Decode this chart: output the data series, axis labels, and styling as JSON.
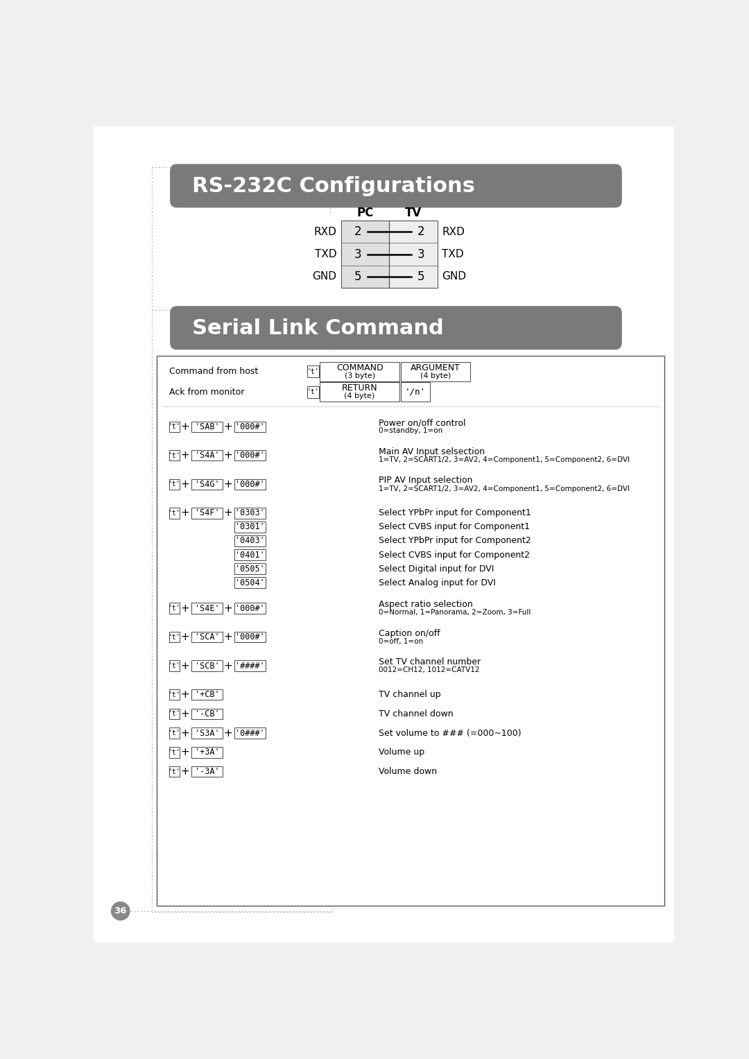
{
  "bg_color": "#f0f0f0",
  "page_bg": "#ffffff",
  "header1_text": "RS-232C Configurations",
  "header2_text": "Serial Link Command",
  "header_bg": "#7a7a7a",
  "header_text_color": "#ffffff",
  "pin_table": {
    "pc_label": "PC",
    "tv_label": "TV",
    "rows": [
      {
        "left_label": "RXD",
        "pc_pin": "2",
        "tv_pin": "2",
        "right_label": "RXD"
      },
      {
        "left_label": "TXD",
        "pc_pin": "3",
        "tv_pin": "3",
        "right_label": "TXD"
      },
      {
        "left_label": "GND",
        "pc_pin": "5",
        "tv_pin": "5",
        "right_label": "GND"
      }
    ]
  },
  "command_rows": [
    {
      "cmd": "'SAB'",
      "arg": "'000#'",
      "desc_line1": "Power on/off control",
      "desc_line2": "0=standby, 1=on"
    },
    {
      "cmd": "'S4A'",
      "arg": "'000#'",
      "desc_line1": "Main AV Input selsection",
      "desc_line2": "1=TV, 2=SCART1/2, 3=AV2, 4=Component1, 5=Component2, 6=DVI"
    },
    {
      "cmd": "'S4G'",
      "arg": "'000#'",
      "desc_line1": "PIP AV Input selection",
      "desc_line2": "1=TV, 2=SCART1/2, 3=AV2, 4=Component1, 5=Component2, 6=DVI"
    },
    {
      "cmd": "'S4F'",
      "arg": null,
      "desc_line1": null,
      "desc_line2": null,
      "sub_rows": [
        {
          "arg": "'0303'",
          "desc": "Select YPbPr input for Component1"
        },
        {
          "arg": "'0301'",
          "desc": "Select CVBS input for Component1"
        },
        {
          "arg": "'0403'",
          "desc": "Select YPbPr input for Component2"
        },
        {
          "arg": "'0401'",
          "desc": "Select CVBS input for Component2"
        },
        {
          "arg": "'0505'",
          "desc": "Select Digital input for DVI"
        },
        {
          "arg": "'0504'",
          "desc": "Select Analog input for DVI"
        }
      ]
    },
    {
      "cmd": "'S4E'",
      "arg": "'000#'",
      "desc_line1": "Aspect ratio selection",
      "desc_line2": "0=Normal, 1=Panorama, 2=Zoom, 3=Full"
    },
    {
      "cmd": "'SCA'",
      "arg": "'000#'",
      "desc_line1": "Caption on/off",
      "desc_line2": "0=off, 1=on"
    },
    {
      "cmd": "'SCB'",
      "arg": "'####'",
      "desc_line1": "Set TV channel number",
      "desc_line2": "0012=CH12, 1012=CATV12"
    },
    {
      "cmd": "'+CB'",
      "arg": null,
      "desc_line1": "TV channel up",
      "desc_line2": null
    },
    {
      "cmd": "'-CB'",
      "arg": null,
      "desc_line1": "TV channel down",
      "desc_line2": null
    },
    {
      "cmd": "'S3A'",
      "arg": "'0###'",
      "desc_line1": "Set volume to ### (=000~100)",
      "desc_line2": null
    },
    {
      "cmd": "'+3A'",
      "arg": null,
      "desc_line1": "Volume up",
      "desc_line2": null
    },
    {
      "cmd": "'-3A'",
      "arg": null,
      "desc_line1": "Volume down",
      "desc_line2": null
    }
  ],
  "page_number": "36"
}
